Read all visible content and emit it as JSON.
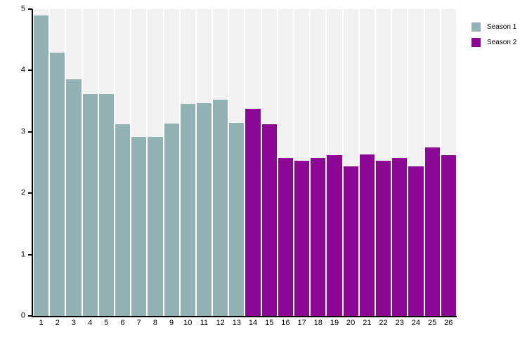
{
  "figure": {
    "background_color": "#ffffff",
    "plot_band_color": "#f1f1f1",
    "axis_color": "#000000"
  },
  "chart_data": {
    "type": "bar",
    "title": "",
    "xlabel": "",
    "ylabel": "",
    "categories": [
      "1",
      "2",
      "3",
      "4",
      "5",
      "6",
      "7",
      "8",
      "9",
      "10",
      "11",
      "12",
      "13",
      "14",
      "15",
      "16",
      "17",
      "18",
      "19",
      "20",
      "21",
      "22",
      "23",
      "24",
      "25",
      "26"
    ],
    "series": [
      {
        "name": "Season 1",
        "color": "#92b2b4",
        "values": [
          4.9,
          4.29,
          3.86,
          3.62,
          3.62,
          3.12,
          2.92,
          2.92,
          3.14,
          3.46,
          3.47,
          3.52,
          3.15,
          null,
          null,
          null,
          null,
          null,
          null,
          null,
          null,
          null,
          null,
          null,
          null,
          null
        ]
      },
      {
        "name": "Season 2",
        "color": "#8c0894",
        "values": [
          null,
          null,
          null,
          null,
          null,
          null,
          null,
          null,
          null,
          null,
          null,
          null,
          null,
          3.38,
          3.12,
          2.58,
          2.53,
          2.57,
          2.62,
          2.44,
          2.63,
          2.53,
          2.57,
          2.44,
          2.75,
          2.62
        ]
      }
    ],
    "ylim": [
      0,
      5
    ],
    "yticks": [
      "0",
      "1",
      "2",
      "3",
      "4",
      "5"
    ],
    "grid": false,
    "legend_position": "top-right",
    "plot_band_color": "#f1f1f1"
  }
}
